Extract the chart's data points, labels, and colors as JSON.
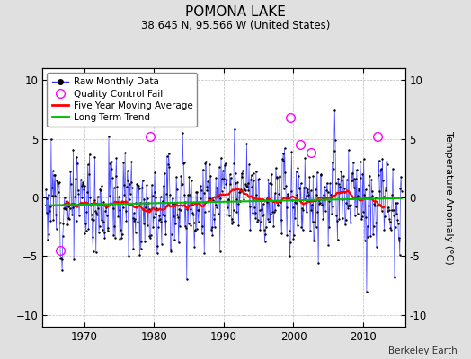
{
  "title": "POMONA LAKE",
  "subtitle": "38.645 N, 95.566 W (United States)",
  "ylabel": "Temperature Anomaly (°C)",
  "attribution": "Berkeley Earth",
  "year_start": 1964.5,
  "year_end": 2015.5,
  "ylim": [
    -11,
    11
  ],
  "yticks": [
    -10,
    -5,
    0,
    5,
    10
  ],
  "xticks": [
    1970,
    1980,
    1990,
    2000,
    2010
  ],
  "bg_color": "#e0e0e0",
  "plot_bg_color": "#ffffff",
  "line_color": "#3333ff",
  "ma_color": "#ff0000",
  "trend_color": "#00bb00",
  "qc_color": "#ff00ff",
  "grid_color": "#bbbbbb",
  "seed": 12,
  "n_months": 612,
  "trend_slope": 0.003,
  "trend_intercept": -0.25,
  "ma_window": 60,
  "noise_std": 2.0
}
